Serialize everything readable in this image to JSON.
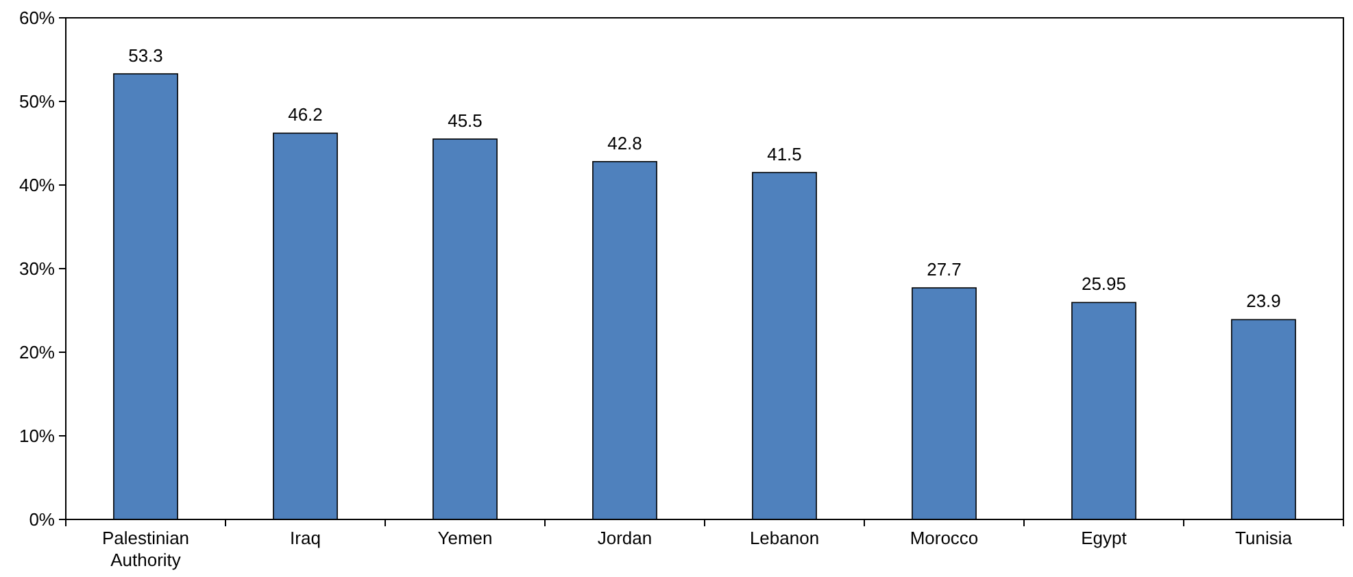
{
  "chart_data": {
    "type": "bar",
    "categories": [
      "Palestinian Authority",
      "Iraq",
      "Yemen",
      "Jordan",
      "Lebanon",
      "Morocco",
      "Egypt",
      "Tunisia"
    ],
    "values": [
      53.3,
      46.2,
      45.5,
      42.8,
      41.5,
      27.7,
      25.95,
      23.9
    ],
    "color": "#4f81bd",
    "ylim": [
      0,
      60
    ],
    "yticks": [
      {
        "value": 0,
        "label": "0%"
      },
      {
        "value": 10,
        "label": "10%"
      },
      {
        "value": 20,
        "label": "20%"
      },
      {
        "value": 30,
        "label": "30%"
      },
      {
        "value": 40,
        "label": "40%"
      },
      {
        "value": 50,
        "label": "50%"
      },
      {
        "value": 60,
        "label": "60%"
      }
    ],
    "data_labels": true,
    "grid": false
  }
}
